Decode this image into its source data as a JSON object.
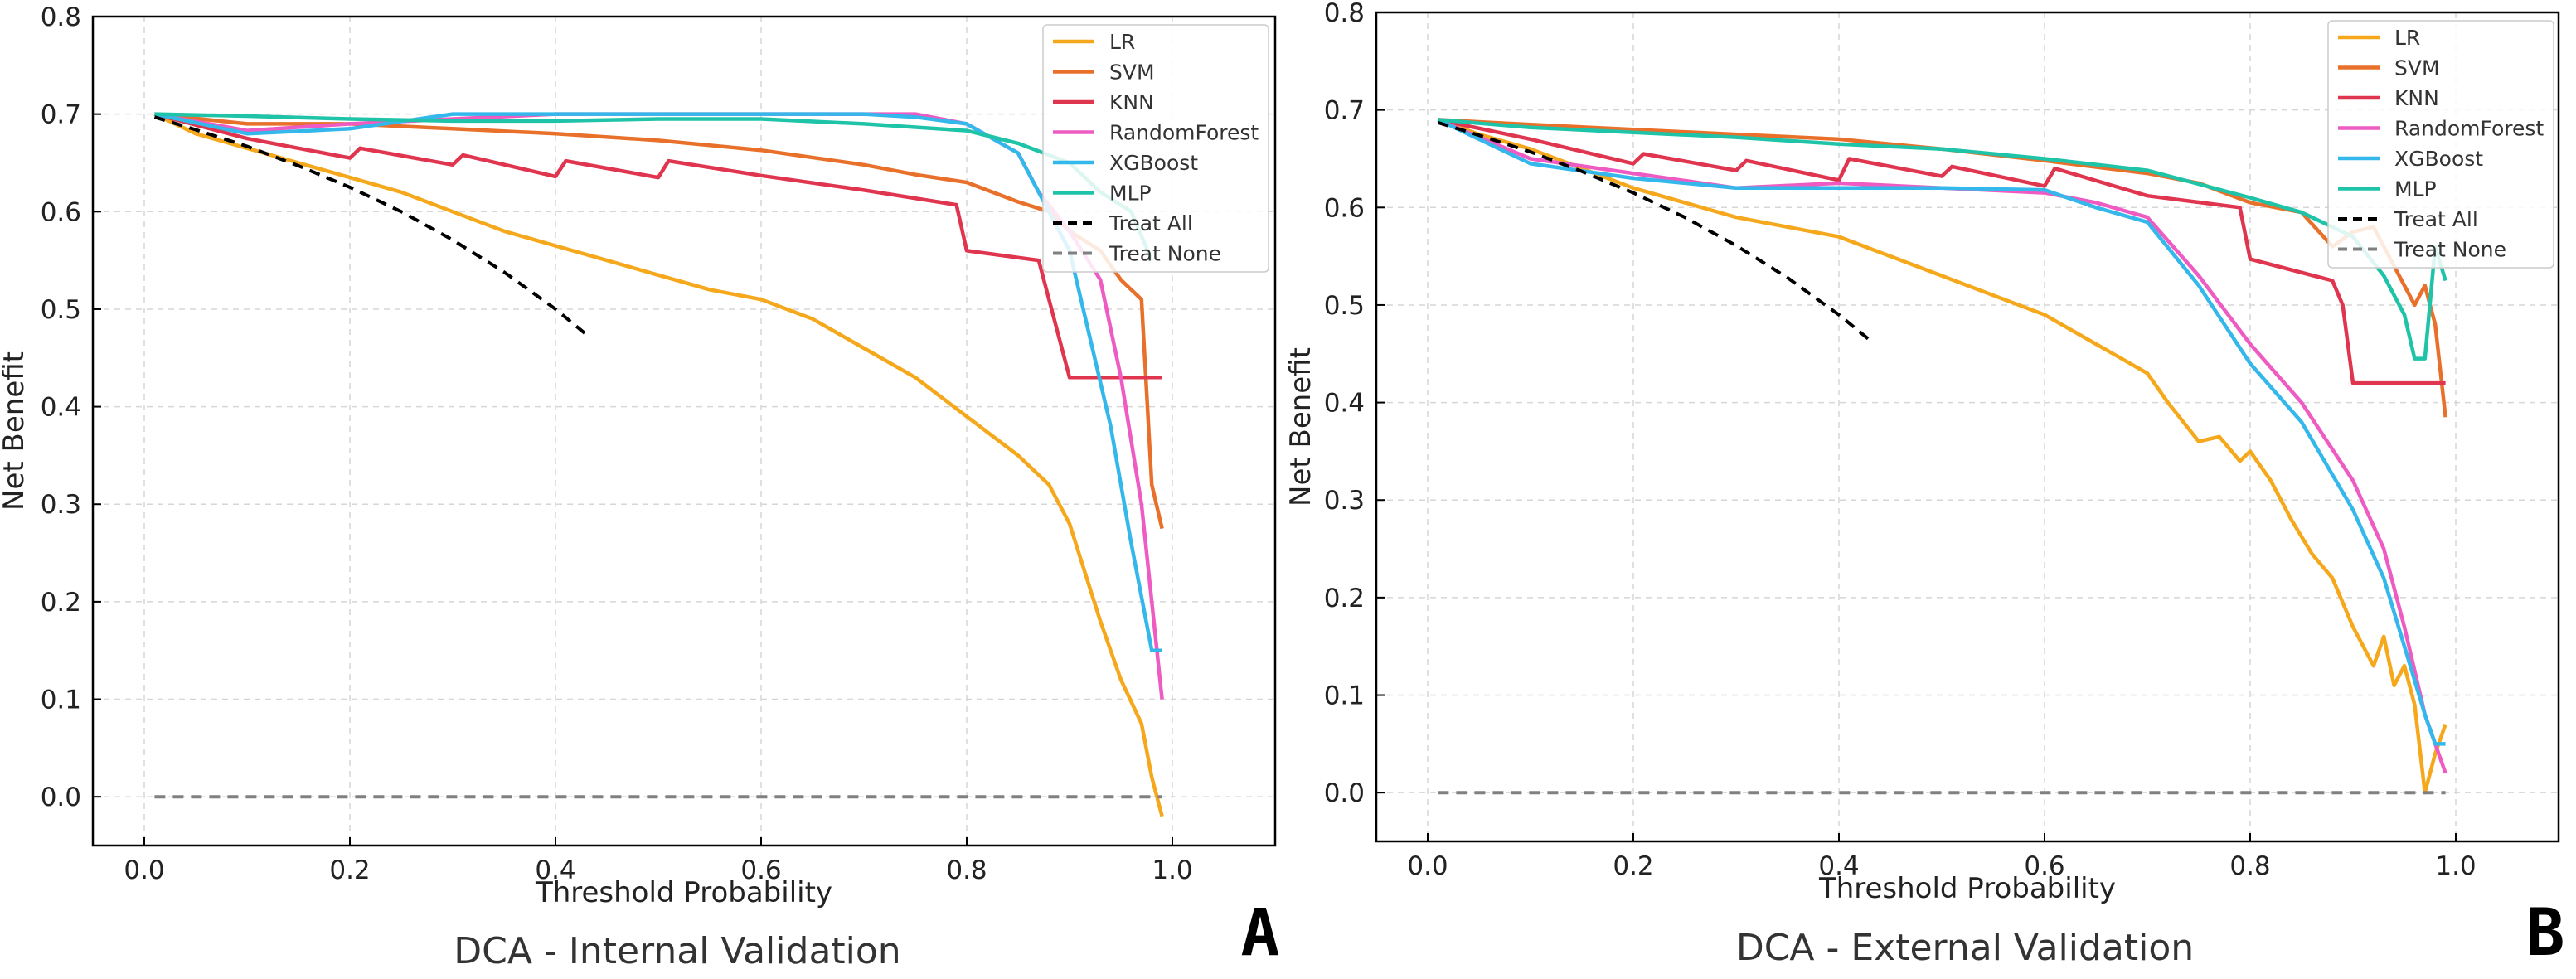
{
  "palette": {
    "LR": "#F5A81C",
    "SVM": "#E8702A",
    "KNN": "#E0354F",
    "RandomForest": "#EE5BC2",
    "XGBoost": "#34B7EA",
    "MLP": "#1FC3A8",
    "Treat All": "#000000",
    "Treat None": "#808080"
  },
  "chart_data": [
    {
      "type": "line",
      "panel": "A",
      "title": "DCA - Internal Validation",
      "xlabel": "Threshold Probability",
      "ylabel": "Net Benefit",
      "xlim": [
        -0.05,
        1.1
      ],
      "ylim": [
        -0.05,
        0.8
      ],
      "xticks": [
        "0.0",
        "0.2",
        "0.4",
        "0.6",
        "0.8",
        "1.0"
      ],
      "yticks": [
        "0.0",
        "0.1",
        "0.2",
        "0.3",
        "0.4",
        "0.5",
        "0.6",
        "0.7",
        "0.8"
      ],
      "grid": true,
      "legend_position": "top-right",
      "series": [
        {
          "name": "LR",
          "x": [
            0.01,
            0.05,
            0.1,
            0.15,
            0.2,
            0.25,
            0.3,
            0.35,
            0.4,
            0.45,
            0.5,
            0.55,
            0.6,
            0.65,
            0.7,
            0.75,
            0.8,
            0.85,
            0.88,
            0.9,
            0.93,
            0.95,
            0.97,
            0.98,
            0.99
          ],
          "y": [
            0.7,
            0.68,
            0.665,
            0.65,
            0.635,
            0.62,
            0.6,
            0.58,
            0.565,
            0.55,
            0.535,
            0.52,
            0.51,
            0.49,
            0.46,
            0.43,
            0.39,
            0.35,
            0.32,
            0.28,
            0.18,
            0.12,
            0.075,
            0.02,
            -0.02
          ]
        },
        {
          "name": "SVM",
          "x": [
            0.01,
            0.1,
            0.2,
            0.3,
            0.4,
            0.5,
            0.6,
            0.7,
            0.75,
            0.8,
            0.85,
            0.88,
            0.9,
            0.93,
            0.95,
            0.97,
            0.98,
            0.99
          ],
          "y": [
            0.7,
            0.69,
            0.69,
            0.685,
            0.68,
            0.673,
            0.663,
            0.648,
            0.638,
            0.63,
            0.61,
            0.6,
            0.58,
            0.56,
            0.53,
            0.51,
            0.32,
            0.275
          ]
        },
        {
          "name": "KNN",
          "x": [
            0.01,
            0.1,
            0.2,
            0.21,
            0.3,
            0.31,
            0.4,
            0.41,
            0.5,
            0.51,
            0.6,
            0.7,
            0.79,
            0.8,
            0.87,
            0.9,
            0.92,
            0.99
          ],
          "y": [
            0.7,
            0.675,
            0.655,
            0.665,
            0.648,
            0.658,
            0.636,
            0.652,
            0.635,
            0.652,
            0.637,
            0.622,
            0.607,
            0.56,
            0.55,
            0.43,
            0.43,
            0.43
          ]
        },
        {
          "name": "RandomForest",
          "x": [
            0.01,
            0.1,
            0.2,
            0.3,
            0.4,
            0.5,
            0.6,
            0.7,
            0.75,
            0.8,
            0.85,
            0.87,
            0.9,
            0.93,
            0.95,
            0.97,
            0.99
          ],
          "y": [
            0.7,
            0.683,
            0.69,
            0.695,
            0.7,
            0.7,
            0.7,
            0.7,
            0.7,
            0.69,
            0.66,
            0.62,
            0.58,
            0.53,
            0.43,
            0.3,
            0.1
          ]
        },
        {
          "name": "XGBoost",
          "x": [
            0.01,
            0.1,
            0.2,
            0.3,
            0.4,
            0.5,
            0.6,
            0.7,
            0.75,
            0.8,
            0.85,
            0.87,
            0.9,
            0.92,
            0.94,
            0.96,
            0.98,
            0.99
          ],
          "y": [
            0.7,
            0.68,
            0.685,
            0.7,
            0.7,
            0.7,
            0.7,
            0.7,
            0.697,
            0.69,
            0.66,
            0.62,
            0.56,
            0.47,
            0.38,
            0.26,
            0.15,
            0.15
          ]
        },
        {
          "name": "MLP",
          "x": [
            0.01,
            0.1,
            0.2,
            0.3,
            0.4,
            0.5,
            0.6,
            0.7,
            0.8,
            0.85,
            0.9,
            0.93,
            0.96,
            0.98
          ],
          "y": [
            0.7,
            0.698,
            0.695,
            0.693,
            0.693,
            0.695,
            0.695,
            0.69,
            0.683,
            0.67,
            0.65,
            0.62,
            0.6,
            0.55
          ]
        },
        {
          "name": "Treat All",
          "x": [
            0.01,
            0.05,
            0.1,
            0.15,
            0.2,
            0.25,
            0.3,
            0.35,
            0.4,
            0.43
          ],
          "y": [
            0.697,
            0.684,
            0.667,
            0.647,
            0.625,
            0.6,
            0.571,
            0.538,
            0.5,
            0.474
          ]
        },
        {
          "name": "Treat None",
          "x": [
            0.01,
            0.99
          ],
          "y": [
            0,
            0
          ]
        }
      ]
    },
    {
      "type": "line",
      "panel": "B",
      "title": "DCA - External Validation",
      "xlabel": "Threshold Probability",
      "ylabel": "Net Benefit",
      "xlim": [
        -0.05,
        1.1
      ],
      "ylim": [
        -0.05,
        0.8
      ],
      "xticks": [
        "0.0",
        "0.2",
        "0.4",
        "0.6",
        "0.8",
        "1.0"
      ],
      "yticks": [
        "0.0",
        "0.1",
        "0.2",
        "0.3",
        "0.4",
        "0.5",
        "0.6",
        "0.7",
        "0.8"
      ],
      "grid": true,
      "legend_position": "top-right",
      "series": [
        {
          "name": "LR",
          "x": [
            0.01,
            0.05,
            0.1,
            0.15,
            0.2,
            0.25,
            0.3,
            0.35,
            0.4,
            0.45,
            0.5,
            0.55,
            0.6,
            0.65,
            0.7,
            0.72,
            0.75,
            0.77,
            0.79,
            0.8,
            0.82,
            0.84,
            0.86,
            0.88,
            0.9,
            0.92,
            0.93,
            0.94,
            0.95,
            0.96,
            0.97,
            0.98,
            0.99
          ],
          "y": [
            0.69,
            0.675,
            0.66,
            0.64,
            0.62,
            0.605,
            0.59,
            0.58,
            0.57,
            0.55,
            0.53,
            0.51,
            0.49,
            0.46,
            0.43,
            0.4,
            0.36,
            0.365,
            0.34,
            0.35,
            0.32,
            0.28,
            0.245,
            0.22,
            0.17,
            0.13,
            0.16,
            0.11,
            0.13,
            0.09,
            0.0,
            0.04,
            0.07
          ]
        },
        {
          "name": "SVM",
          "x": [
            0.01,
            0.1,
            0.2,
            0.3,
            0.4,
            0.5,
            0.6,
            0.7,
            0.75,
            0.8,
            0.85,
            0.88,
            0.9,
            0.92,
            0.93,
            0.94,
            0.95,
            0.96,
            0.97,
            0.98,
            0.99
          ],
          "y": [
            0.69,
            0.685,
            0.68,
            0.675,
            0.67,
            0.66,
            0.648,
            0.635,
            0.625,
            0.605,
            0.595,
            0.56,
            0.575,
            0.58,
            0.56,
            0.54,
            0.52,
            0.5,
            0.52,
            0.48,
            0.385
          ]
        },
        {
          "name": "KNN",
          "x": [
            0.01,
            0.1,
            0.2,
            0.21,
            0.3,
            0.31,
            0.4,
            0.41,
            0.5,
            0.51,
            0.6,
            0.61,
            0.7,
            0.79,
            0.8,
            0.88,
            0.89,
            0.9,
            0.99
          ],
          "y": [
            0.69,
            0.67,
            0.645,
            0.655,
            0.638,
            0.648,
            0.628,
            0.65,
            0.632,
            0.642,
            0.622,
            0.64,
            0.612,
            0.6,
            0.547,
            0.525,
            0.5,
            0.42,
            0.42
          ]
        },
        {
          "name": "RandomForest",
          "x": [
            0.01,
            0.1,
            0.2,
            0.3,
            0.4,
            0.5,
            0.6,
            0.65,
            0.7,
            0.75,
            0.8,
            0.85,
            0.9,
            0.93,
            0.95,
            0.97,
            0.99
          ],
          "y": [
            0.69,
            0.65,
            0.635,
            0.62,
            0.625,
            0.62,
            0.615,
            0.605,
            0.59,
            0.53,
            0.46,
            0.4,
            0.32,
            0.25,
            0.17,
            0.08,
            0.02
          ]
        },
        {
          "name": "XGBoost",
          "x": [
            0.01,
            0.1,
            0.2,
            0.3,
            0.4,
            0.5,
            0.6,
            0.65,
            0.7,
            0.75,
            0.8,
            0.85,
            0.9,
            0.93,
            0.95,
            0.97,
            0.98,
            0.99
          ],
          "y": [
            0.69,
            0.645,
            0.63,
            0.62,
            0.62,
            0.62,
            0.618,
            0.6,
            0.585,
            0.52,
            0.44,
            0.38,
            0.29,
            0.22,
            0.15,
            0.08,
            0.05,
            0.05
          ]
        },
        {
          "name": "MLP",
          "x": [
            0.01,
            0.1,
            0.2,
            0.3,
            0.4,
            0.5,
            0.6,
            0.7,
            0.8,
            0.85,
            0.9,
            0.93,
            0.95,
            0.96,
            0.97,
            0.98,
            0.99
          ],
          "y": [
            0.69,
            0.682,
            0.677,
            0.672,
            0.665,
            0.66,
            0.65,
            0.638,
            0.61,
            0.595,
            0.57,
            0.53,
            0.49,
            0.445,
            0.445,
            0.56,
            0.525
          ]
        },
        {
          "name": "Treat All",
          "x": [
            0.01,
            0.05,
            0.1,
            0.15,
            0.2,
            0.25,
            0.3,
            0.35,
            0.4,
            0.43
          ],
          "y": [
            0.687,
            0.674,
            0.657,
            0.637,
            0.615,
            0.59,
            0.561,
            0.528,
            0.49,
            0.464
          ]
        },
        {
          "name": "Treat None",
          "x": [
            0.01,
            0.99
          ],
          "y": [
            0,
            0
          ]
        }
      ]
    }
  ],
  "panels": [
    {
      "title": "DCA - Internal Validation",
      "letter": "A"
    },
    {
      "title": "DCA - External Validation",
      "letter": "B"
    }
  ]
}
